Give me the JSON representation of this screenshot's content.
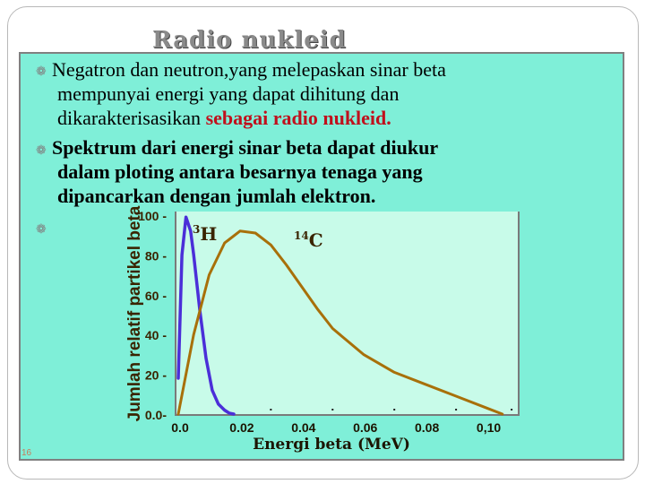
{
  "slide": {
    "title": "Radio nukleid",
    "page_number": "16",
    "bullet_1_line_1": "Negatron dan neutron,yang melepaskan sinar beta",
    "bullet_1_line_2": "mempunyai energi yang dapat dihitung dan",
    "bullet_1_line_3_normal": "dikarakterisasikan ",
    "bullet_1_line_3_red": "sebagai radio nukleid.",
    "bullet_2_line_1": "Spektrum dari energi sinar beta dapat diukur",
    "bullet_2_line_2": "dalam ploting antara besarnya tenaga yang",
    "bullet_2_line_3": "dipancarkan dengan jumlah elektron."
  },
  "colors": {
    "panel": "#7fefd8",
    "plot_background": "#c8fbe9",
    "title": "#8a8a8a",
    "highlight_red": "#c0101c",
    "series_h3": "#4b2fd8",
    "series_c14": "#a8700a"
  },
  "chart_data": {
    "type": "line",
    "xlabel": "Energi beta (MeV)",
    "ylabel": "Jumlah relatif partikel beta",
    "x_ticks": [
      "0.0",
      "0.02",
      "0.04",
      "0.06",
      "0.08",
      "0,10"
    ],
    "y_ticks": [
      "0.0",
      "20",
      "40",
      "60",
      "80",
      "100"
    ],
    "xlim": [
      0,
      0.11
    ],
    "ylim": [
      0,
      100
    ],
    "grid": false,
    "annotations": [
      "3H",
      "14C"
    ],
    "series": [
      {
        "label": "3H",
        "color": "#4b2fd8",
        "x": [
          0.0,
          0.0012,
          0.0025,
          0.004,
          0.005,
          0.007,
          0.009,
          0.011,
          0.013,
          0.015,
          0.0165,
          0.018
        ],
        "y": [
          18,
          80,
          99,
          92,
          80,
          52,
          28,
          12,
          5,
          2,
          0.5,
          0
        ]
      },
      {
        "label": "14C",
        "color": "#a8700a",
        "x": [
          0.0,
          0.005,
          0.01,
          0.015,
          0.02,
          0.025,
          0.03,
          0.035,
          0.04,
          0.045,
          0.05,
          0.06,
          0.07,
          0.08,
          0.09,
          0.1,
          0.105
        ],
        "y": [
          0,
          40,
          70,
          86,
          92,
          91,
          85,
          75,
          64,
          53,
          43,
          30,
          21,
          15,
          9,
          3,
          0
        ]
      }
    ]
  }
}
